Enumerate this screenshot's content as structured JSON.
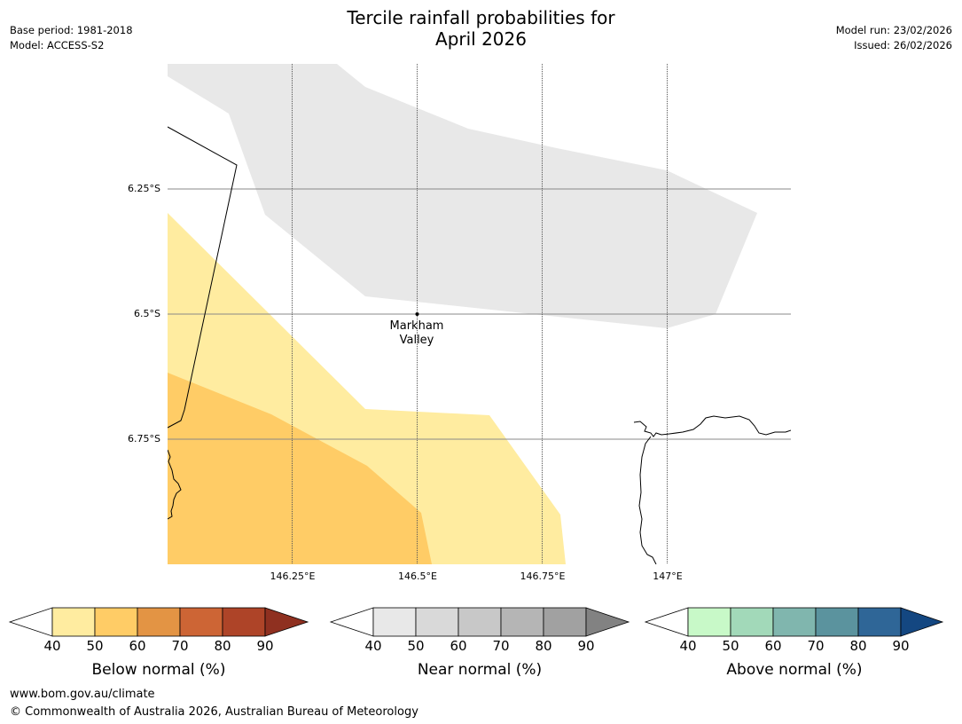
{
  "header": {
    "title_line1": "Tercile rainfall probabilities for",
    "title_line2": "April 2026",
    "base_period": "Base period: 1981-2018",
    "model": "Model: ACCESS-S2",
    "model_run": "Model run: 23/02/2026",
    "issued": "Issued: 26/02/2026"
  },
  "map": {
    "lat_labels": [
      "6.25°S",
      "6.5°S",
      "6.75°S"
    ],
    "lon_labels": [
      "146.25°E",
      "146.5°E",
      "146.75°E",
      "147°E"
    ],
    "place": {
      "line1": "Markham",
      "line2": "Valley"
    },
    "colors": {
      "near_40": "#e8e8e8",
      "below_40": "#ffeca0",
      "below_50": "#ffcc66",
      "coast": "#000000"
    }
  },
  "colorbars": [
    {
      "title": "Below normal (%)",
      "ticks": [
        "40",
        "50",
        "60",
        "70",
        "80",
        "90"
      ],
      "colors": [
        "#ffeca0",
        "#ffcc66",
        "#e39444",
        "#cd6535",
        "#ae4428",
        "#8f3020"
      ]
    },
    {
      "title": "Near normal (%)",
      "ticks": [
        "40",
        "50",
        "60",
        "70",
        "80",
        "90"
      ],
      "colors": [
        "#e8e8e8",
        "#d9d9d9",
        "#c8c8c8",
        "#b5b5b5",
        "#a1a1a1",
        "#828282"
      ]
    },
    {
      "title": "Above normal (%)",
      "ticks": [
        "40",
        "50",
        "60",
        "70",
        "80",
        "90"
      ],
      "colors": [
        "#c8f9c8",
        "#a2d9b9",
        "#80b6ae",
        "#5b939e",
        "#2f6697",
        "#144781"
      ]
    }
  ],
  "footer": {
    "url": "www.bom.gov.au/climate",
    "copyright": "© Commonwealth of Australia 2026, Australian Bureau of Meteorology"
  }
}
